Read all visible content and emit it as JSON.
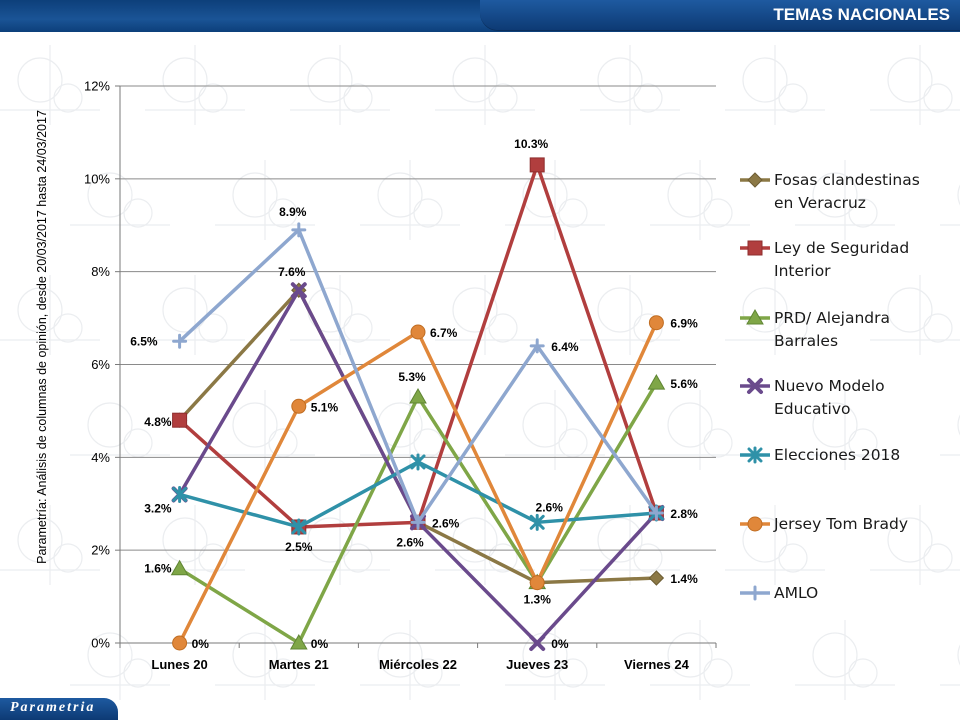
{
  "header": {
    "title": "TEMAS NACIONALES"
  },
  "footer": {
    "logo": "Parametria"
  },
  "source_note": "Parametría: Análisis de columnas de opinión, desde 20/03/2017 hasta 24/03/2017",
  "chart_data": {
    "type": "line",
    "title": "",
    "xlabel": "",
    "ylabel": "",
    "categories": [
      "Lunes 20",
      "Martes 21",
      "Miércoles 22",
      "Jueves 23",
      "Viernes 24"
    ],
    "ylim": [
      0,
      12
    ],
    "yticks": [
      "0%",
      "2%",
      "4%",
      "6%",
      "8%",
      "10%",
      "12%"
    ],
    "grid": true,
    "legend_position": "right",
    "series": [
      {
        "name": "Fosas clandestinas en Veracruz",
        "color": "#8b7845",
        "marker": "diamond",
        "values": [
          4.8,
          7.6,
          2.6,
          1.3,
          1.4
        ]
      },
      {
        "name": "Ley de Seguridad Interior",
        "color": "#b13e3e",
        "marker": "square",
        "values": [
          4.8,
          2.5,
          2.6,
          10.3,
          2.8
        ]
      },
      {
        "name": "PRD/ Alejandra Barrales",
        "color": "#7fa647",
        "marker": "triangle",
        "values": [
          1.6,
          0,
          5.3,
          1.3,
          5.6
        ]
      },
      {
        "name": "Nuevo Modelo Educativo",
        "color": "#6a4a8c",
        "marker": "x",
        "values": [
          3.2,
          7.6,
          2.6,
          0,
          2.8
        ]
      },
      {
        "name": "Elecciones 2018",
        "color": "#2f91a8",
        "marker": "star",
        "values": [
          3.2,
          2.5,
          3.9,
          2.6,
          2.8
        ]
      },
      {
        "name": "Jersey Tom Brady",
        "color": "#e0873a",
        "marker": "circle",
        "values": [
          0,
          5.1,
          6.7,
          1.3,
          6.9
        ]
      },
      {
        "name": "AMLO",
        "color": "#8ea7cf",
        "marker": "plus",
        "values": [
          6.5,
          8.9,
          2.6,
          6.4,
          2.8
        ]
      }
    ],
    "data_labels": [
      {
        "category": "Lunes 20",
        "value": 6.5,
        "text": "6.5%"
      },
      {
        "category": "Lunes 20",
        "value": 4.8,
        "text": "4.8%"
      },
      {
        "category": "Lunes 20",
        "value": 3.2,
        "text": "3.2%"
      },
      {
        "category": "Lunes 20",
        "value": 1.6,
        "text": "1.6%"
      },
      {
        "category": "Lunes 20",
        "value": 0,
        "text": "0%"
      },
      {
        "category": "Martes 21",
        "value": 8.9,
        "text": "8.9%"
      },
      {
        "category": "Martes 21",
        "value": 7.6,
        "text": "7.6%"
      },
      {
        "category": "Martes 21",
        "value": 5.1,
        "text": "5.1%"
      },
      {
        "category": "Martes 21",
        "value": 2.5,
        "text": "2.5%"
      },
      {
        "category": "Martes 21",
        "value": 0,
        "text": "0%"
      },
      {
        "category": "Miércoles 22",
        "value": 6.7,
        "text": "6.7%"
      },
      {
        "category": "Miércoles 22",
        "value": 5.3,
        "text": "5.3%"
      },
      {
        "category": "Miércoles 22",
        "value": 2.6,
        "text": "2.6%"
      },
      {
        "category": "Miércoles 22",
        "value": 2.6,
        "text": "2.6%"
      },
      {
        "category": "Jueves 23",
        "value": 10.3,
        "text": "10.3%"
      },
      {
        "category": "Jueves 23",
        "value": 6.4,
        "text": "6.4%"
      },
      {
        "category": "Jueves 23",
        "value": 2.6,
        "text": "2.6%"
      },
      {
        "category": "Jueves 23",
        "value": 1.3,
        "text": "1.3%"
      },
      {
        "category": "Jueves 23",
        "value": 0,
        "text": "0%"
      },
      {
        "category": "Viernes 24",
        "value": 6.9,
        "text": "6.9%"
      },
      {
        "category": "Viernes 24",
        "value": 5.6,
        "text": "5.6%"
      },
      {
        "category": "Viernes 24",
        "value": 2.8,
        "text": "2.8%"
      },
      {
        "category": "Viernes 24",
        "value": 1.4,
        "text": "1.4%"
      }
    ]
  }
}
